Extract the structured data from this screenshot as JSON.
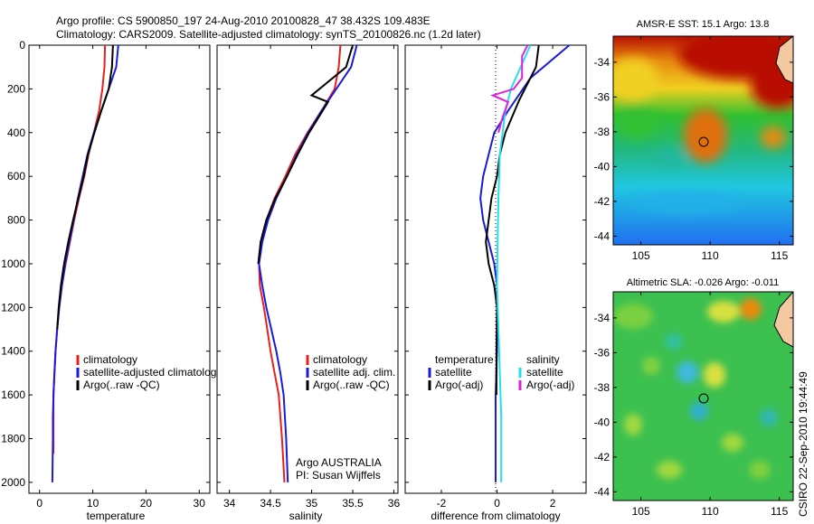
{
  "header": {
    "line1": "Argo profile: CS 5900850_197 24-Aug-2010 20100828_47 38.432S 109.483E",
    "line2": "Climatology: CARS2009. Satellite-adjusted climatology: synTS_20100826.nc (1.2d later)"
  },
  "colors": {
    "red": "#e8201c",
    "blue": "#1a1adc",
    "black": "#000000",
    "cyan": "#20e0f0",
    "magenta": "#e020e0"
  },
  "panels": {
    "temperature": {
      "xlabel": "temperature",
      "xticks": [
        "0",
        "10",
        "20",
        "30"
      ],
      "legend": [
        "climatology",
        "satellite-adjusted climatolog",
        "Argo(..raw -QC)"
      ]
    },
    "salinity": {
      "xlabel": "salinity",
      "xticks": [
        "34",
        "34.5",
        "35",
        "35.5",
        "36"
      ],
      "legend": [
        "climatology",
        "satellite adj. clim.",
        "Argo(..raw -QC)"
      ],
      "credit1": "Argo AUSTRALIA",
      "credit2": "PI: Susan Wijffels"
    },
    "difference": {
      "xlabel": "difference from climatology",
      "xticks": [
        "-2",
        "0",
        "2"
      ],
      "legend_temp_title": "temperature",
      "legend_temp": [
        "satellite",
        "Argo(-adj)"
      ],
      "legend_sal_title": "salinity",
      "legend_sal": [
        "satellite",
        "Argo(-adj)"
      ]
    }
  },
  "yticks": [
    "0",
    "200",
    "400",
    "600",
    "800",
    "1000",
    "1200",
    "1400",
    "1600",
    "1800",
    "2000"
  ],
  "maps": {
    "sst_title": "AMSR-E SST: 15.1 Argo: 13.8",
    "sla_title": "Altimetric SLA: -0.026 Argo: -0.011",
    "lat_ticks": [
      "-34",
      "-36",
      "-38",
      "-40",
      "-42",
      "-44"
    ],
    "lon_ticks": [
      "105",
      "110",
      "115"
    ],
    "float_lon": 109.483,
    "float_lat": -38.432
  },
  "footer": "CSIRO 22-Sep-2010 19:44:49",
  "chart_data": [
    {
      "type": "line",
      "xlabel": "temperature",
      "xlim": [
        -2,
        32
      ],
      "ylim": [
        2050,
        0
      ],
      "series": [
        {
          "name": "climatology",
          "color": "red",
          "x": [
            12.3,
            12.2,
            11.8,
            11.2,
            10.2,
            9.2,
            8.4,
            7.4,
            6.5,
            5.7,
            4.9,
            4.2,
            3.7,
            3.3,
            3.0,
            2.8,
            2.6,
            2.6,
            2.6
          ],
          "y": [
            0,
            100,
            200,
            300,
            400,
            500,
            600,
            700,
            800,
            900,
            1000,
            1100,
            1200,
            1300,
            1400,
            1500,
            1600,
            1700,
            1870
          ]
        },
        {
          "name": "satellite-adjusted climatology",
          "color": "blue",
          "x": [
            14.8,
            14.4,
            13.0,
            11.6,
            10.2,
            9.0,
            8.1,
            7.2,
            6.4,
            5.6,
            4.8,
            4.2,
            3.7,
            3.3,
            3.0,
            2.8,
            2.6,
            2.5,
            2.5,
            2.4
          ],
          "y": [
            0,
            100,
            200,
            300,
            400,
            500,
            600,
            700,
            800,
            900,
            1000,
            1100,
            1200,
            1300,
            1400,
            1500,
            1600,
            1700,
            1800,
            2000
          ]
        },
        {
          "name": "Argo(..raw -QC)",
          "color": "black",
          "x": [
            13.8,
            13.6,
            13.0,
            11.6,
            10.3,
            9.1,
            8.3,
            7.3,
            6.3,
            5.4,
            4.6,
            4.0,
            3.6,
            3.3
          ],
          "y": [
            0,
            100,
            200,
            300,
            400,
            500,
            600,
            700,
            800,
            900,
            1000,
            1100,
            1200,
            1300
          ]
        }
      ]
    },
    {
      "type": "line",
      "xlabel": "salinity",
      "xlim": [
        33.85,
        36.05
      ],
      "ylim": [
        2050,
        0
      ],
      "series": [
        {
          "name": "climatology",
          "color": "red",
          "x": [
            35.35,
            35.33,
            35.28,
            35.12,
            34.95,
            34.8,
            34.68,
            34.55,
            34.45,
            34.38,
            34.36,
            34.37,
            34.42,
            34.46,
            34.5,
            34.55,
            34.6,
            34.64,
            34.67
          ],
          "y": [
            0,
            100,
            200,
            300,
            400,
            500,
            600,
            700,
            800,
            900,
            1000,
            1100,
            1200,
            1300,
            1400,
            1500,
            1600,
            1800,
            2000
          ]
        },
        {
          "name": "satellite adj. clim.",
          "color": "blue",
          "x": [
            35.55,
            35.48,
            35.3,
            35.12,
            34.96,
            34.82,
            34.7,
            34.57,
            34.47,
            34.4,
            34.36,
            34.4,
            34.45,
            34.51,
            34.57,
            34.62,
            34.66,
            34.69,
            34.71
          ],
          "y": [
            0,
            100,
            200,
            300,
            400,
            500,
            600,
            700,
            800,
            900,
            1000,
            1100,
            1200,
            1300,
            1400,
            1500,
            1600,
            1800,
            2000
          ]
        },
        {
          "name": "Argo(..raw -QC)",
          "color": "black",
          "x": [
            35.5,
            35.42,
            35.0,
            35.2,
            34.97,
            34.83,
            34.7,
            34.56,
            34.45,
            34.38,
            34.35
          ],
          "y": [
            0,
            100,
            230,
            260,
            400,
            500,
            600,
            700,
            800,
            900,
            1000
          ]
        }
      ]
    },
    {
      "type": "line",
      "xlabel": "difference from climatology",
      "xlim": [
        -3.3,
        3.2
      ],
      "ylim": [
        2050,
        0
      ],
      "series": [
        {
          "name": "temperature satellite",
          "color": "blue",
          "x": [
            2.6,
            1.2,
            0.4,
            -0.1,
            -0.3,
            -0.5,
            -0.6,
            -0.5,
            -0.3,
            -0.1,
            0.0,
            0.0,
            0.0,
            -0.05,
            -0.05,
            -0.05
          ],
          "y": [
            0,
            150,
            300,
            400,
            500,
            600,
            700,
            800,
            900,
            1000,
            1100,
            1200,
            1400,
            1600,
            1800,
            2000
          ]
        },
        {
          "name": "temperature Argo(-adj)",
          "color": "black",
          "x": [
            1.5,
            1.4,
            0.8,
            0.3,
            0.1,
            0.0,
            -0.2,
            -0.4,
            -0.3,
            -0.1,
            0.0,
            -0.02,
            -0.02
          ],
          "y": [
            0,
            100,
            250,
            400,
            500,
            600,
            700,
            900,
            1000,
            1100,
            1200,
            1400,
            1600
          ]
        },
        {
          "name": "salinity satellite",
          "color": "cyan",
          "x": [
            1.2,
            0.5,
            0.3,
            0.1,
            0.05,
            0.02,
            0.0,
            0.05,
            0.1,
            0.15,
            0.15
          ],
          "y": [
            0,
            200,
            300,
            500,
            700,
            900,
            1100,
            1300,
            1500,
            1700,
            2000
          ]
        },
        {
          "name": "salinity Argo(-adj)",
          "color": "magenta",
          "x": [
            1.1,
            0.9,
            0.9,
            0.6,
            -0.15,
            0.4,
            0.2,
            0.05
          ],
          "y": [
            0,
            50,
            150,
            200,
            230,
            260,
            330,
            400
          ]
        }
      ]
    }
  ]
}
